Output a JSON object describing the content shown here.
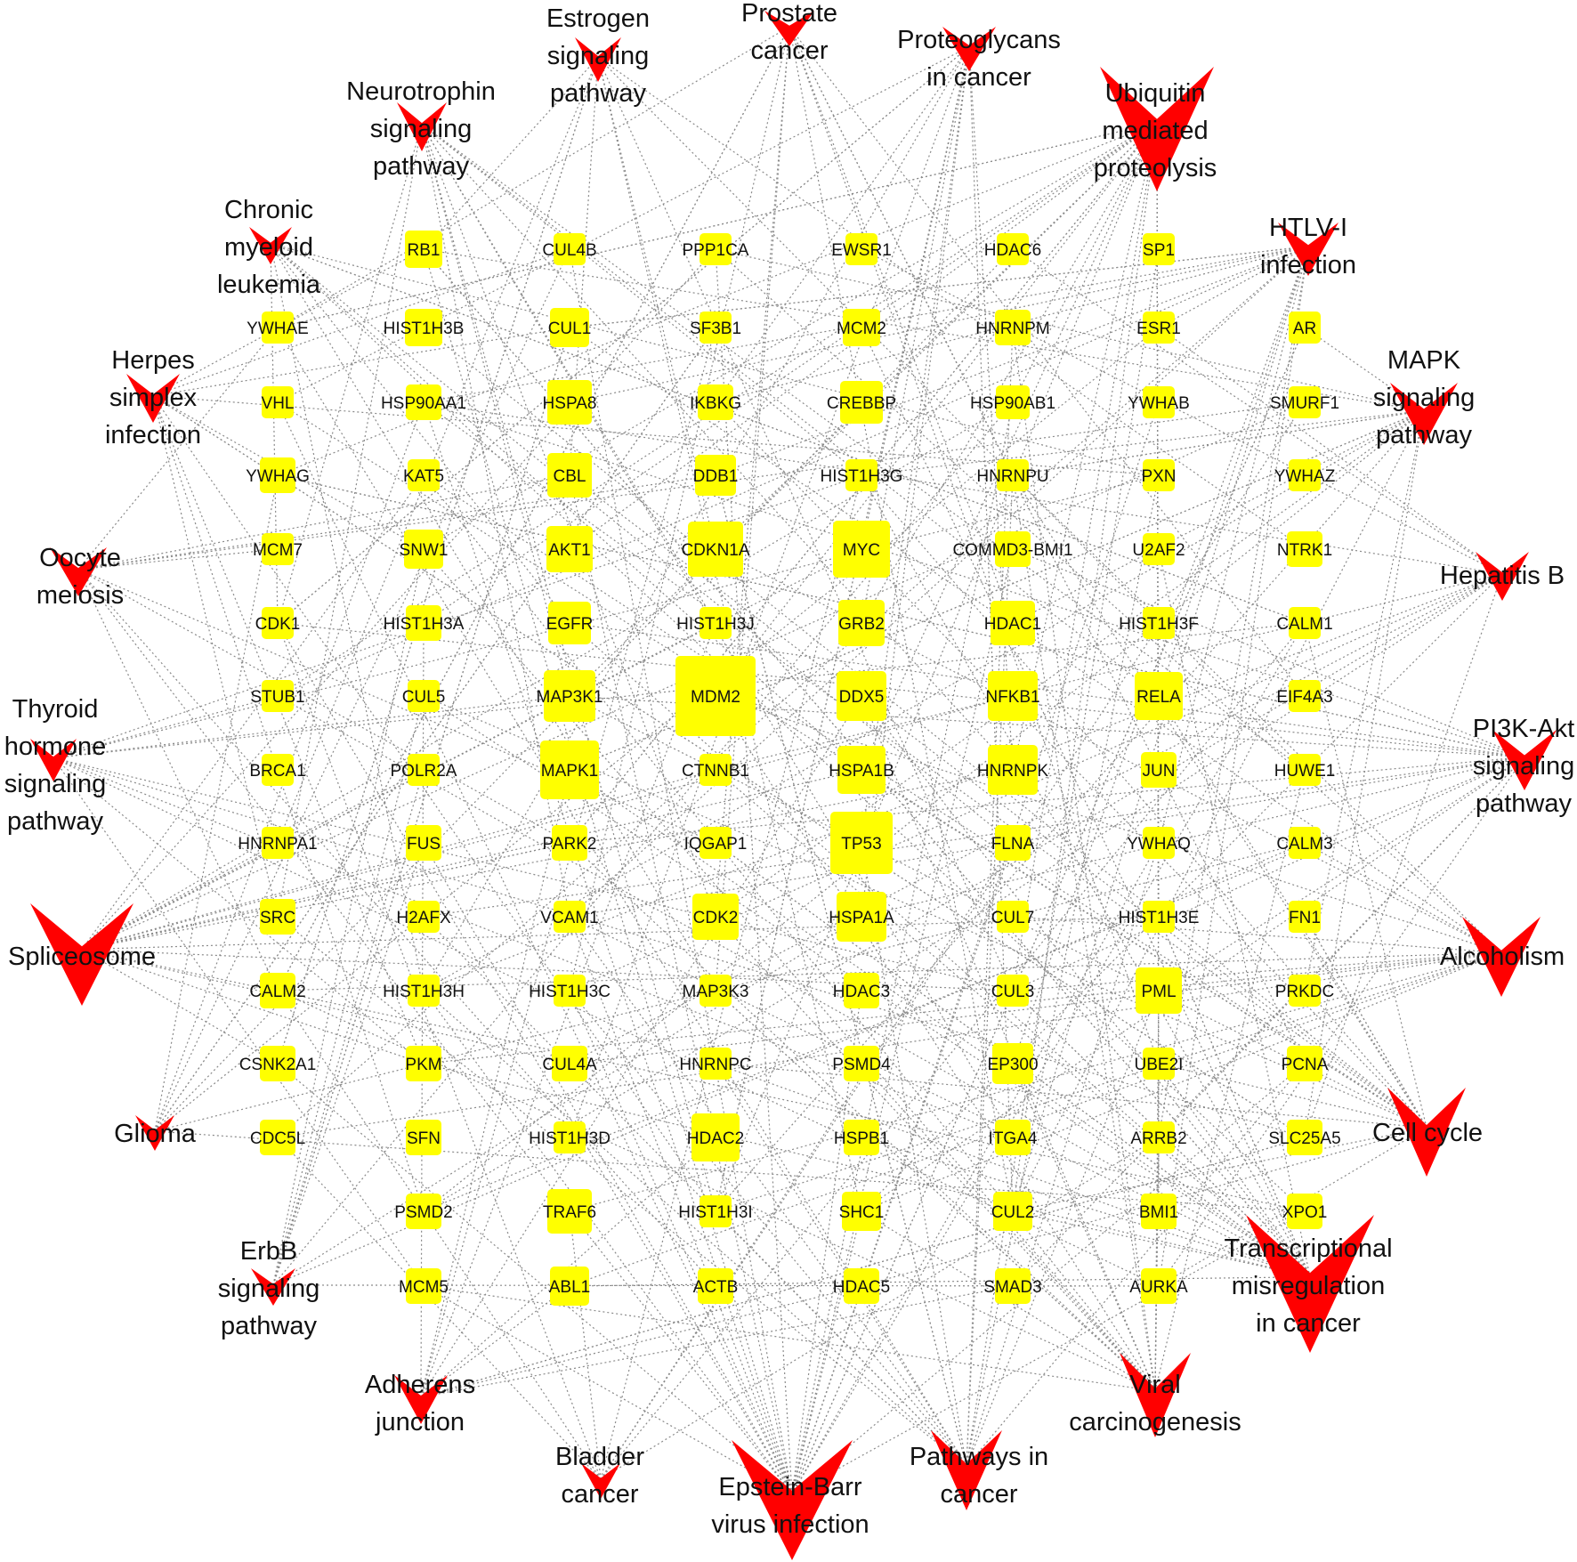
{
  "colors": {
    "gene_node": "#ffff00",
    "pathway_node": "#ff0000",
    "edge": "#8a8a8a"
  },
  "pathways": [
    [
      "Estrogen",
      "signaling",
      "pathway"
    ],
    [
      "Prostate",
      "cancer"
    ],
    [
      "Proteoglycans",
      "in cancer"
    ],
    [
      "Ubiquitin",
      "mediated",
      "proteolysis"
    ],
    [
      "Neurotrophin",
      "signaling",
      "pathway"
    ],
    [
      "Chronic",
      "myeloid",
      "leukemia"
    ],
    [
      "HTLV-I",
      "infection"
    ],
    [
      "Herpes",
      "simplex",
      "infection"
    ],
    [
      "MAPK",
      "signaling",
      "pathway"
    ],
    [
      "Oocyte",
      "meiosis"
    ],
    [
      "Hepatitis B"
    ],
    [
      "Thyroid",
      "hormone",
      "signaling",
      "pathway"
    ],
    [
      "PI3K-Akt",
      "signaling",
      "pathway"
    ],
    [
      "Spliceosome"
    ],
    [
      "Alcoholism"
    ],
    [
      "Glioma"
    ],
    [
      "Cell cycle"
    ],
    [
      "ErbB",
      "signaling",
      "pathway"
    ],
    [
      "Transcriptional",
      "misregulation",
      "in cancer"
    ],
    [
      "Adherens",
      "junction"
    ],
    [
      "Viral",
      "carcinogenesis"
    ],
    [
      "Bladder",
      "cancer"
    ],
    [
      "Epstein-Barr",
      "virus infection"
    ],
    [
      "Pathways in",
      "cancer"
    ]
  ],
  "genes": [
    "RB1",
    "CUL4B",
    "PPP1CA",
    "EWSR1",
    "HDAC6",
    "SP1",
    "YWHAE",
    "HIST1H3B",
    "CUL1",
    "SF3B1",
    "MCM2",
    "HNRNPM",
    "ESR1",
    "AR",
    "VHL",
    "HSP90AA1",
    "HSPA8",
    "IKBKG",
    "CREBBP",
    "HSP90AB1",
    "YWHAB",
    "SMURF1",
    "YWHAG",
    "KAT5",
    "CBL",
    "DDB1",
    "HIST1H3G",
    "HNRNPU",
    "PXN",
    "YWHAZ",
    "MCM7",
    "SNW1",
    "AKT1",
    "CDKN1A",
    "MYC",
    "COMMD3-BMI1",
    "U2AF2",
    "NTRK1",
    "CDK1",
    "HIST1H3A",
    "EGFR",
    "HIST1H3J",
    "GRB2",
    "HDAC1",
    "HIST1H3F",
    "CALM1",
    "STUB1",
    "CUL5",
    "MAP3K1",
    "MDM2",
    "DDX5",
    "NFKB1",
    "RELA",
    "EIF4A3",
    "BRCA1",
    "POLR2A",
    "MAPK1",
    "CTNNB1",
    "HSPA1B",
    "HNRNPK",
    "JUN",
    "HUWE1",
    "HNRNPA1",
    "FUS",
    "PARK2",
    "IQGAP1",
    "TP53",
    "FLNA",
    "YWHAQ",
    "CALM3",
    "SRC",
    "H2AFX",
    "VCAM1",
    "CDK2",
    "HSPA1A",
    "CUL7",
    "HIST1H3E",
    "FN1",
    "CALM2",
    "HIST1H3H",
    "HIST1H3C",
    "MAP3K3",
    "HDAC3",
    "CUL3",
    "PML",
    "PRKDC",
    "CSNK2A1",
    "PKM",
    "CUL4A",
    "HNRNPC",
    "PSMD4",
    "EP300",
    "UBE2I",
    "PCNA",
    "CDC5L",
    "SFN",
    "HIST1H3D",
    "HDAC2",
    "HSPB1",
    "ITGA4",
    "ARRB2",
    "SLC25A5",
    "PSMD2",
    "TRAF6",
    "HIST1H3I",
    "SHC1",
    "CUL2",
    "BMI1",
    "XPO1",
    "MCM5",
    "ABL1",
    "ACTB",
    "HDAC5",
    "SMAD3",
    "AURKA"
  ]
}
